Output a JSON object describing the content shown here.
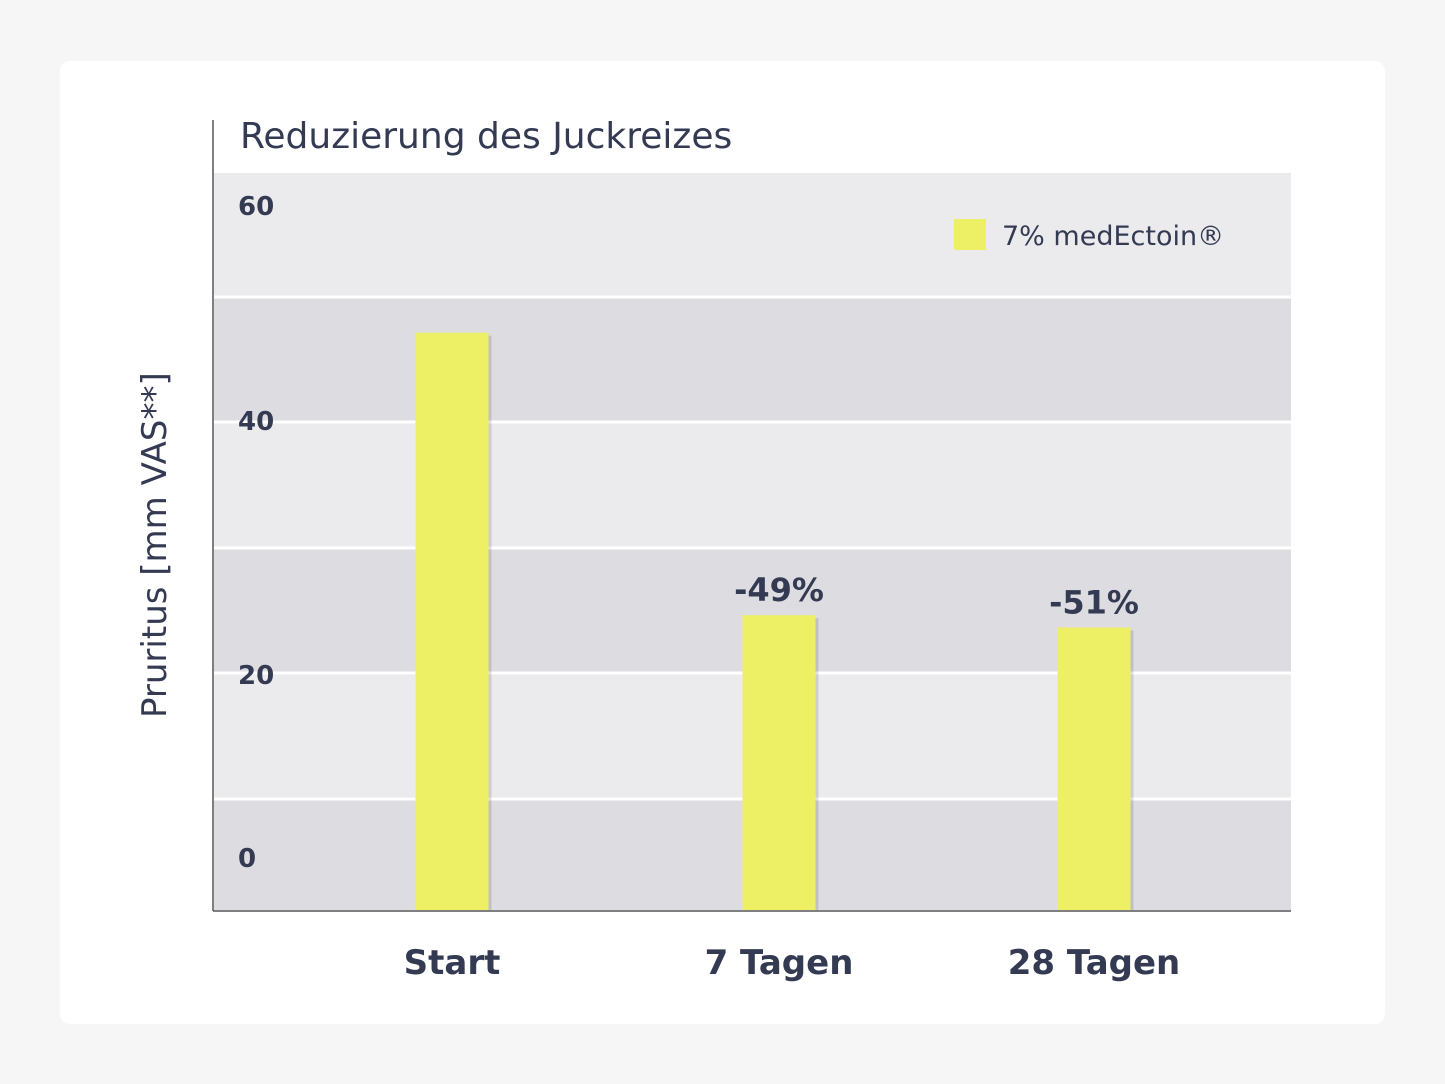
{
  "chart_data": {
    "type": "bar",
    "title": "Reduzierung des Juckreizes",
    "ylabel": "Pruritus [mm VAS**]",
    "xlabel": "",
    "categories": [
      "Start",
      "7 Tagen",
      "28 Tagen"
    ],
    "series": [
      {
        "name": "7% medEctoin®",
        "values": [
          47,
          24,
          23
        ]
      }
    ],
    "data_labels": [
      "",
      "-49%",
      "-51%"
    ],
    "y_tick_labels": [
      "60",
      "40",
      "20",
      "0"
    ],
    "ylim": [
      0,
      60
    ],
    "legend_position": "top-right",
    "grid": "alternating horizontal bands",
    "colors": {
      "bar": "#edf065",
      "band_light": "#ebebee",
      "band_dark": "#dcdce1",
      "text": "#333a52"
    }
  }
}
